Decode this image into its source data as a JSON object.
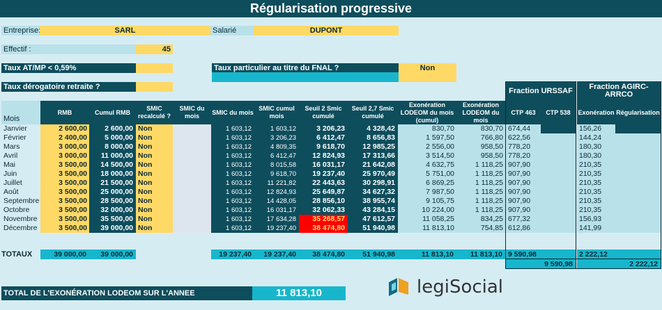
{
  "title": "Régularisation progressive",
  "entreprise": {
    "label": "Entreprise:",
    "value": "SARL"
  },
  "salarie": {
    "label": "Salarié",
    "value": "DUPONT"
  },
  "effectif": {
    "label": "Effectif :",
    "value": "45"
  },
  "taux_atmp": {
    "label": "Taux AT/MP < 0,59%"
  },
  "taux_fnal": {
    "label": "Taux particulier au titre du FNAL ?",
    "value": "Non"
  },
  "taux_retraite": {
    "label": "Taux dérogatoire retraite ?"
  },
  "groups": {
    "urssaf": "Fraction URSSAF",
    "agirc": "Fraction AGIRC-ARRCO"
  },
  "headers": {
    "mois": "Mois",
    "rmb": "RMB",
    "cumul_rmb": "Cumul RMB",
    "smic_recalc": "SMIC recalculé ?",
    "smic_du_mois": "SMIC du mois",
    "smic_mois": "SMIC du mois",
    "smic_cumul": "SMIC cumul mois",
    "seuil2": "Seuil 2 Smic cumulé",
    "seuil27": "Seuil 2,7 Smic cumulé",
    "exo_cumul": "Exonération LODEOM du mois (cumul)",
    "exo_mois": "Exonération LODEOM du mois",
    "ctp463": "CTP 463",
    "ctp538": "CTP 538",
    "exoneration": "Exonération",
    "regularisation": "Régularisation"
  },
  "rows": [
    {
      "mois": "Janvier",
      "rmb": "2 600,00",
      "cumul": "2 600,00",
      "recalc": "Non",
      "smic": "1 603,12",
      "smic_cumul": "1 603,12",
      "s2": "3 206,23",
      "s27": "4 328,42",
      "exo_cumul": "830,70",
      "exo_mois": "830,70",
      "ctp463": "674,44",
      "exo_agirc": "156,26"
    },
    {
      "mois": "Février",
      "rmb": "2 400,00",
      "cumul": "5 000,00",
      "recalc": "Non",
      "smic": "1 603,12",
      "smic_cumul": "3 206,23",
      "s2": "6 412,47",
      "s27": "8 656,83",
      "exo_cumul": "1 597,50",
      "exo_mois": "766,80",
      "ctp463": "622,56",
      "exo_agirc": "144,24"
    },
    {
      "mois": "Mars",
      "rmb": "3 000,00",
      "cumul": "8 000,00",
      "recalc": "Non",
      "smic": "1 603,12",
      "smic_cumul": "4 809,35",
      "s2": "9 618,70",
      "s27": "12 985,25",
      "exo_cumul": "2 556,00",
      "exo_mois": "958,50",
      "ctp463": "778,20",
      "exo_agirc": "180,30"
    },
    {
      "mois": "Avril",
      "rmb": "3 000,00",
      "cumul": "11 000,00",
      "recalc": "Non",
      "smic": "1 603,12",
      "smic_cumul": "6 412,47",
      "s2": "12 824,93",
      "s27": "17 313,66",
      "exo_cumul": "3 514,50",
      "exo_mois": "958,50",
      "ctp463": "778,20",
      "exo_agirc": "180,30"
    },
    {
      "mois": "Mai",
      "rmb": "3 500,00",
      "cumul": "14 500,00",
      "recalc": "Non",
      "smic": "1 603,12",
      "smic_cumul": "8 015,58",
      "s2": "16 031,17",
      "s27": "21 642,08",
      "exo_cumul": "4 632,75",
      "exo_mois": "1 118,25",
      "ctp463": "907,90",
      "exo_agirc": "210,35"
    },
    {
      "mois": "Juin",
      "rmb": "3 500,00",
      "cumul": "18 000,00",
      "recalc": "Non",
      "smic": "1 603,12",
      "smic_cumul": "9 618,70",
      "s2": "19 237,40",
      "s27": "25 970,49",
      "exo_cumul": "5 751,00",
      "exo_mois": "1 118,25",
      "ctp463": "907,90",
      "exo_agirc": "210,35"
    },
    {
      "mois": "Juillet",
      "rmb": "3 500,00",
      "cumul": "21 500,00",
      "recalc": "Non",
      "smic": "1 603,12",
      "smic_cumul": "11 221,82",
      "s2": "22 443,63",
      "s27": "30 298,91",
      "exo_cumul": "6 869,25",
      "exo_mois": "1 118,25",
      "ctp463": "907,90",
      "exo_agirc": "210,35"
    },
    {
      "mois": "Août",
      "rmb": "3 500,00",
      "cumul": "25 000,00",
      "recalc": "Non",
      "smic": "1 603,12",
      "smic_cumul": "12 824,93",
      "s2": "25 649,87",
      "s27": "34 627,32",
      "exo_cumul": "7 987,50",
      "exo_mois": "1 118,25",
      "ctp463": "907,90",
      "exo_agirc": "210,35"
    },
    {
      "mois": "Septembre",
      "rmb": "3 500,00",
      "cumul": "28 500,00",
      "recalc": "Non",
      "smic": "1 603,12",
      "smic_cumul": "14 428,05",
      "s2": "28 856,10",
      "s27": "38 955,74",
      "exo_cumul": "9 105,75",
      "exo_mois": "1 118,25",
      "ctp463": "907,90",
      "exo_agirc": "210,35"
    },
    {
      "mois": "Octobre",
      "rmb": "3 500,00",
      "cumul": "32 000,00",
      "recalc": "Non",
      "smic": "1 603,12",
      "smic_cumul": "16 031,17",
      "s2": "32 062,33",
      "s27": "43 284,15",
      "exo_cumul": "10 224,00",
      "exo_mois": "1 118,25",
      "ctp463": "907,90",
      "exo_agirc": "210,35"
    },
    {
      "mois": "Novembre",
      "rmb": "3 500,00",
      "cumul": "35 500,00",
      "recalc": "Non",
      "smic": "1 603,12",
      "smic_cumul": "17 634,28",
      "s2": "35 268,57",
      "s27": "47 612,57",
      "exo_cumul": "11 058,25",
      "exo_mois": "834,25",
      "ctp463": "677,32",
      "exo_agirc": "156,93"
    },
    {
      "mois": "Décembre",
      "rmb": "3 500,00",
      "cumul": "39 000,00",
      "recalc": "Non",
      "smic": "1 603,12",
      "smic_cumul": "19 237,40",
      "s2": "38 474,80",
      "s27": "51 940,98",
      "exo_cumul": "11 813,10",
      "exo_mois": "754,85",
      "ctp463": "612,86",
      "exo_agirc": "141,99"
    }
  ],
  "totaux": {
    "label": "TOTAUX",
    "rmb": "39 000,00",
    "cumul": "39 000,00",
    "smic": "19 237,40",
    "smic_cumul": "19 237,40",
    "s2": "38 474,80",
    "s27": "51 940,98",
    "exo_cumul": "11 813,10",
    "exo_mois": "11 813,10",
    "ctp463": "9 590,98",
    "urssaf_total": "9 590,98",
    "exo_agirc": "2 222,12",
    "agirc_total": "2 222,12"
  },
  "total_exo": {
    "label": "TOTAL DE L'EXONÉRATION LODEOM SUR L'ANNEE",
    "value": "11 813,10"
  },
  "logo": {
    "text": "legiSocial"
  }
}
